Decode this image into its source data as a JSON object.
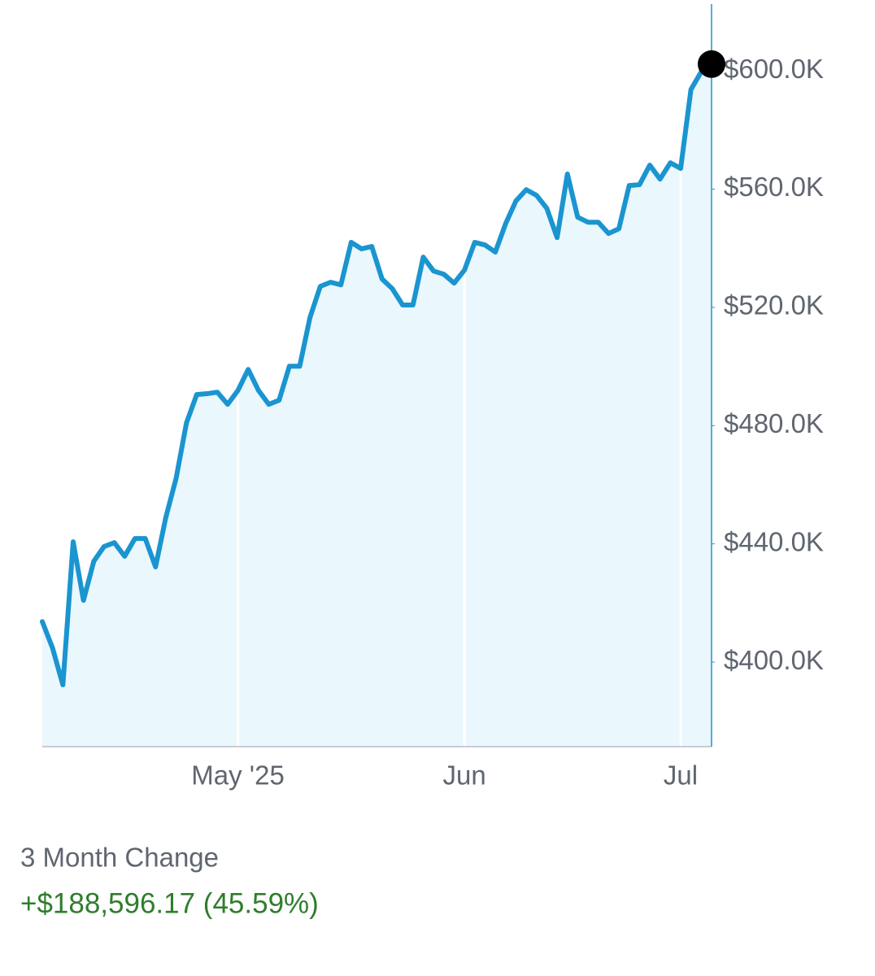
{
  "chart_data": {
    "type": "area-line",
    "categories": [
      null,
      null,
      null,
      null,
      null,
      null,
      null,
      null,
      null,
      null,
      null,
      null,
      null,
      null,
      null,
      null,
      null,
      null,
      null,
      "May '25",
      null,
      null,
      null,
      null,
      null,
      null,
      null,
      null,
      null,
      null,
      null,
      null,
      null,
      null,
      null,
      null,
      null,
      null,
      null,
      null,
      null,
      "Jun",
      null,
      null,
      null,
      null,
      null,
      null,
      null,
      null,
      null,
      null,
      null,
      null,
      null,
      null,
      null,
      null,
      null,
      null,
      null,
      null,
      "Jul",
      null,
      null,
      null
    ],
    "values": [
      413.7,
      404.7,
      392.3,
      440.7,
      420.9,
      434.1,
      439.1,
      440.4,
      435.8,
      441.8,
      441.8,
      432.2,
      449.0,
      462.2,
      480.9,
      490.5,
      490.8,
      491.3,
      487.2,
      491.9,
      499.0,
      491.9,
      487.2,
      488.6,
      500.1,
      500.1,
      516.6,
      527.1,
      528.5,
      527.6,
      542.0,
      539.8,
      540.6,
      529.6,
      526.3,
      520.8,
      520.8,
      537.0,
      532.3,
      531.2,
      528.2,
      532.6,
      542.0,
      541.1,
      538.7,
      548.3,
      556.0,
      559.8,
      557.9,
      553.5,
      543.6,
      565.1,
      550.5,
      548.8,
      548.8,
      545.0,
      546.6,
      561.2,
      561.5,
      568.1,
      563.4,
      568.9,
      567.0,
      593.7,
      599.7,
      602.3
    ],
    "color": "#1a95d0",
    "fill_color": "#eaf7fd",
    "marker_color": "#000000",
    "ylim": [
      371.4,
      622.6
    ],
    "yticks": [
      {
        "value": 400,
        "label": "$400.0K"
      },
      {
        "value": 440,
        "label": "$440.0K"
      },
      {
        "value": 480,
        "label": "$480.0K"
      },
      {
        "value": 520,
        "label": "$520.0K"
      },
      {
        "value": 560,
        "label": "$560.0K"
      },
      {
        "value": 600,
        "label": "$600.0K"
      }
    ]
  },
  "summary": {
    "label": "3 Month Change",
    "value": "+$188,596.17 (45.59%)"
  }
}
